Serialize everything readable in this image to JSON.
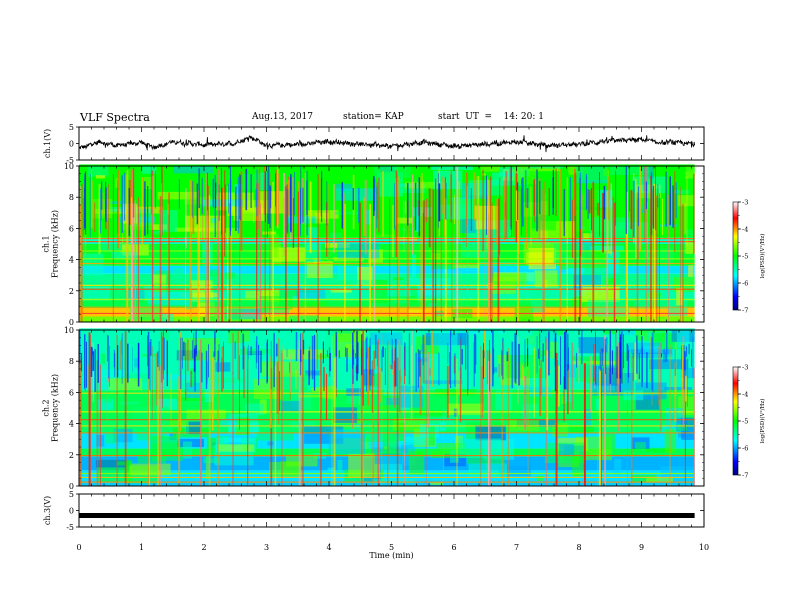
{
  "header": {
    "title": "VLF Spectra",
    "date": "Aug.13, 2017",
    "station": "station= KAP",
    "start": "start  UT  =    14: 20: 1"
  },
  "chart_data": [
    {
      "type": "line",
      "panel": "ch1-waveform",
      "ylabel": "ch.1(V)",
      "ylim": [
        -5,
        5
      ],
      "yticks": [
        "5",
        "0",
        "-5"
      ],
      "xlim": [
        0,
        10
      ],
      "color": "#000000",
      "x_end": 9.85,
      "level_shape_x": [
        0,
        0.3,
        0.6,
        1.0,
        1.2,
        1.5,
        2.0,
        2.5,
        2.75,
        3.0,
        3.5,
        4.0,
        4.5,
        5.0,
        5.5,
        6.0,
        6.5,
        7.0,
        7.5,
        8.0,
        8.5,
        9.0,
        9.3,
        9.5,
        9.85
      ],
      "level_shape_y": [
        -1.6,
        0.5,
        -0.6,
        0.3,
        -1.2,
        0.5,
        -0.4,
        0.1,
        2.0,
        -0.6,
        -0.3,
        0.6,
        -0.2,
        -0.8,
        0.4,
        -0.8,
        -0.2,
        0.5,
        -0.6,
        -0.2,
        0.8,
        1.2,
        0.2,
        0.4,
        -0.2
      ]
    },
    {
      "type": "heatmap",
      "panel": "ch1-spectrogram",
      "ylabel_line1": "ch.1",
      "ylabel_line2": "Frequency (kHz)",
      "ylim": [
        0,
        10
      ],
      "yticks": [
        "0",
        "2",
        "4",
        "6",
        "8",
        "10"
      ],
      "xlim": [
        0,
        10
      ],
      "data_end": 9.85,
      "colorbar": {
        "label": "log(PSD)(V²/Hz)",
        "range": [
          -7,
          -3
        ],
        "ticks": [
          "-3",
          "-4",
          "-5",
          "-6",
          "-7"
        ]
      }
    },
    {
      "type": "heatmap",
      "panel": "ch2-spectrogram",
      "ylabel_line1": "ch.2",
      "ylabel_line2": "Frequency (kHz)",
      "ylim": [
        0,
        10
      ],
      "yticks": [
        "0",
        "2",
        "4",
        "6",
        "8",
        "10"
      ],
      "xlim": [
        0,
        10
      ],
      "data_end": 9.85,
      "colorbar": {
        "label": "log(PSD)(V²/Hz)",
        "range": [
          -7,
          -3
        ],
        "ticks": [
          "-3",
          "-4",
          "-5",
          "-6",
          "-7"
        ]
      }
    },
    {
      "type": "line",
      "panel": "ch3-waveform",
      "ylabel": "ch.3(V)",
      "ylim": [
        -5,
        5
      ],
      "yticks": [
        "5",
        "0",
        "-5"
      ],
      "xlim": [
        0,
        10
      ],
      "level": -1.5,
      "color": "#000000",
      "x_end": 9.85
    }
  ],
  "xaxis": {
    "label": "Time  (min)",
    "ticks": [
      "0",
      "1",
      "2",
      "3",
      "4",
      "5",
      "6",
      "7",
      "8",
      "9",
      "10"
    ]
  }
}
